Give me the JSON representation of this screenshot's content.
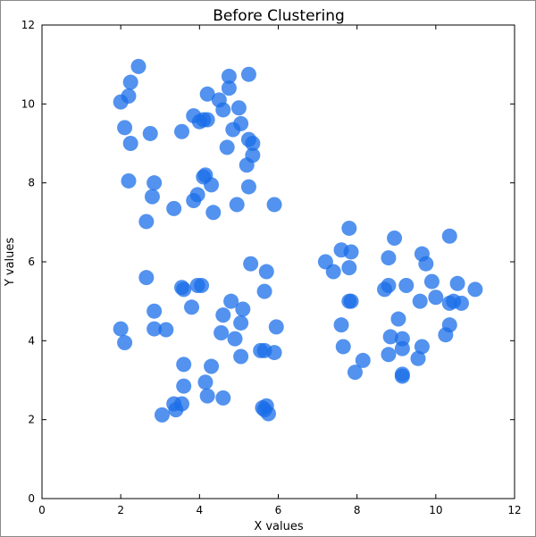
{
  "chart_data": {
    "type": "scatter",
    "title": "Before Clustering",
    "xlabel": "X values",
    "ylabel": "Y values",
    "xlim": [
      0,
      12
    ],
    "ylim": [
      0,
      12
    ],
    "xticks": [
      "0",
      "2",
      "4",
      "6",
      "8",
      "10",
      "12"
    ],
    "yticks": [
      "0",
      "2",
      "4",
      "6",
      "8",
      "10",
      "12"
    ],
    "grid": false,
    "marker_color": "#1a6ee8",
    "series": [
      {
        "points": [
          [
            2.45,
            10.95
          ],
          [
            2.25,
            10.55
          ],
          [
            2.2,
            10.2
          ],
          [
            2.0,
            10.05
          ],
          [
            2.1,
            9.4
          ],
          [
            2.25,
            9.0
          ],
          [
            2.75,
            9.25
          ],
          [
            2.2,
            8.05
          ],
          [
            2.85,
            8.0
          ],
          [
            2.8,
            7.65
          ],
          [
            2.65,
            7.02
          ],
          [
            3.35,
            7.35
          ],
          [
            3.55,
            9.3
          ],
          [
            3.85,
            9.7
          ],
          [
            4.0,
            9.55
          ],
          [
            4.1,
            9.6
          ],
          [
            4.2,
            9.6
          ],
          [
            4.2,
            10.25
          ],
          [
            4.5,
            10.1
          ],
          [
            4.6,
            9.85
          ],
          [
            4.75,
            10.7
          ],
          [
            4.75,
            10.4
          ],
          [
            5.25,
            10.75
          ],
          [
            5.0,
            9.9
          ],
          [
            5.05,
            9.5
          ],
          [
            4.85,
            9.35
          ],
          [
            4.7,
            8.9
          ],
          [
            5.25,
            9.1
          ],
          [
            5.35,
            9.0
          ],
          [
            5.35,
            8.7
          ],
          [
            5.2,
            8.45
          ],
          [
            4.15,
            8.2
          ],
          [
            4.1,
            8.15
          ],
          [
            4.3,
            7.95
          ],
          [
            3.95,
            7.7
          ],
          [
            3.85,
            7.55
          ],
          [
            4.35,
            7.25
          ],
          [
            4.95,
            7.45
          ],
          [
            5.25,
            7.9
          ],
          [
            5.9,
            7.45
          ],
          [
            2.65,
            5.6
          ],
          [
            3.55,
            5.35
          ],
          [
            3.6,
            5.3
          ],
          [
            3.95,
            5.4
          ],
          [
            4.05,
            5.4
          ],
          [
            5.3,
            5.95
          ],
          [
            5.7,
            5.75
          ],
          [
            5.65,
            5.25
          ],
          [
            2.85,
            4.75
          ],
          [
            3.8,
            4.85
          ],
          [
            4.8,
            5.0
          ],
          [
            5.1,
            4.8
          ],
          [
            4.6,
            4.65
          ],
          [
            5.05,
            4.45
          ],
          [
            5.95,
            4.35
          ],
          [
            4.55,
            4.2
          ],
          [
            4.9,
            4.05
          ],
          [
            2.0,
            4.3
          ],
          [
            2.85,
            4.3
          ],
          [
            3.15,
            4.28
          ],
          [
            2.1,
            3.95
          ],
          [
            5.55,
            3.75
          ],
          [
            5.65,
            3.75
          ],
          [
            5.9,
            3.7
          ],
          [
            5.05,
            3.6
          ],
          [
            3.6,
            3.4
          ],
          [
            4.3,
            3.35
          ],
          [
            3.6,
            2.85
          ],
          [
            4.15,
            2.95
          ],
          [
            4.2,
            2.6
          ],
          [
            4.6,
            2.55
          ],
          [
            3.35,
            2.4
          ],
          [
            3.55,
            2.4
          ],
          [
            3.4,
            2.25
          ],
          [
            3.05,
            2.12
          ],
          [
            5.6,
            2.3
          ],
          [
            5.7,
            2.35
          ],
          [
            5.65,
            2.25
          ],
          [
            5.75,
            2.15
          ],
          [
            7.8,
            6.85
          ],
          [
            8.95,
            6.6
          ],
          [
            10.35,
            6.65
          ],
          [
            7.6,
            6.3
          ],
          [
            7.85,
            6.25
          ],
          [
            9.65,
            6.2
          ],
          [
            7.2,
            6.0
          ],
          [
            7.4,
            5.75
          ],
          [
            7.8,
            5.85
          ],
          [
            8.8,
            6.1
          ],
          [
            9.75,
            5.95
          ],
          [
            9.9,
            5.5
          ],
          [
            8.8,
            5.4
          ],
          [
            8.7,
            5.3
          ],
          [
            9.25,
            5.4
          ],
          [
            10.55,
            5.45
          ],
          [
            11.0,
            5.3
          ],
          [
            7.8,
            5.0
          ],
          [
            7.85,
            5.0
          ],
          [
            9.6,
            5.0
          ],
          [
            10.0,
            5.1
          ],
          [
            10.35,
            4.95
          ],
          [
            10.65,
            4.95
          ],
          [
            10.45,
            5.0
          ],
          [
            9.05,
            4.55
          ],
          [
            7.6,
            4.4
          ],
          [
            10.35,
            4.4
          ],
          [
            10.25,
            4.15
          ],
          [
            8.85,
            4.1
          ],
          [
            9.15,
            4.05
          ],
          [
            7.65,
            3.85
          ],
          [
            9.15,
            3.8
          ],
          [
            9.65,
            3.85
          ],
          [
            8.8,
            3.65
          ],
          [
            8.15,
            3.5
          ],
          [
            9.55,
            3.55
          ],
          [
            7.95,
            3.2
          ],
          [
            9.15,
            3.1
          ],
          [
            9.15,
            3.15
          ]
        ]
      }
    ]
  }
}
